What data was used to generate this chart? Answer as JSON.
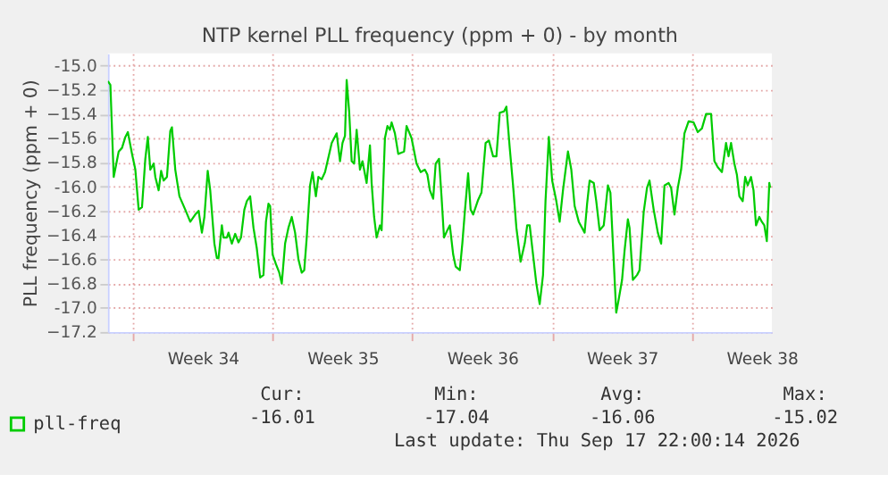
{
  "chart_data": {
    "type": "line",
    "title": "NTP kernel PLL frequency (ppm + 0) - by month",
    "ylabel": "PLL frequency (ppm + 0)",
    "xlim": [
      "2026-08-15T18:00",
      "2026-09-18T00:00"
    ],
    "xticks": [
      {
        "value": "2026-08-17T00:00",
        "label": null
      },
      {
        "value": "2026-08-20T12:00",
        "label": "Week 34"
      },
      {
        "value": "2026-08-24T00:00",
        "label": null
      },
      {
        "value": "2026-08-27T12:00",
        "label": "Week 35"
      },
      {
        "value": "2026-08-31T00:00",
        "label": null
      },
      {
        "value": "2026-09-03T12:00",
        "label": "Week 36"
      },
      {
        "value": "2026-09-07T00:00",
        "label": null
      },
      {
        "value": "2026-09-10T12:00",
        "label": "Week 37"
      },
      {
        "value": "2026-09-14T00:00",
        "label": null
      },
      {
        "value": "2026-09-17T12:00",
        "label": "Week 38"
      }
    ],
    "ylim": [
      -17.2,
      -14.9
    ],
    "yticks": [
      -17.2,
      {
        "value": -17,
        "label": "-17.0"
      },
      -16.8,
      -16.6,
      -16.4,
      -16.2,
      {
        "value": -16,
        "label": "-16.0"
      },
      -15.8,
      -15.6,
      -15.4,
      -15.2,
      {
        "value": -15,
        "label": "-15.0"
      }
    ],
    "grid": true,
    "legend": "bottom",
    "x": [
      "2026-08-15T18:00",
      "2026-08-15T21:00",
      "2026-08-16T01:00",
      "2026-08-16T07:00",
      "2026-08-16T11:00",
      "2026-08-16T15:00",
      "2026-08-16T18:00",
      "2026-08-16T23:00",
      "2026-08-17T03:00",
      "2026-08-17T07:00",
      "2026-08-17T11:00",
      "2026-08-17T15:00",
      "2026-08-17T18:00",
      "2026-08-17T21:00",
      "2026-08-18T01:00",
      "2026-08-18T03:00",
      "2026-08-18T07:00",
      "2026-08-18T10:00",
      "2026-08-18T13:00",
      "2026-08-18T17:00",
      "2026-08-18T21:00",
      "2026-08-18T23:00",
      "2026-08-19T03:00",
      "2026-08-19T08:00",
      "2026-08-19T15:00",
      "2026-08-19T21:00",
      "2026-08-20T03:00",
      "2026-08-20T07:00",
      "2026-08-20T11:00",
      "2026-08-20T14:00",
      "2026-08-20T18:00",
      "2026-08-20T21:00",
      "2026-08-21T02:00",
      "2026-08-21T05:00",
      "2026-08-21T07:00",
      "2026-08-21T11:00",
      "2026-08-21T13:00",
      "2026-08-21T17:00",
      "2026-08-21T19:00",
      "2026-08-21T23:00",
      "2026-08-22T03:00",
      "2026-08-22T07:00",
      "2026-08-22T10:00",
      "2026-08-22T14:00",
      "2026-08-22T17:00",
      "2026-08-22T21:00",
      "2026-08-23T01:00",
      "2026-08-23T05:00",
      "2026-08-23T09:00",
      "2026-08-23T13:00",
      "2026-08-23T16:00",
      "2026-08-23T19:00",
      "2026-08-23T21:00",
      "2026-08-24T00:00",
      "2026-08-24T04:00",
      "2026-08-24T08:00",
      "2026-08-24T11:00",
      "2026-08-24T15:00",
      "2026-08-24T19:00",
      "2026-08-24T23:00",
      "2026-08-25T03:00",
      "2026-08-25T07:00",
      "2026-08-25T11:00",
      "2026-08-25T14:00",
      "2026-08-25T17:00",
      "2026-08-25T21:00",
      "2026-08-26T00:00",
      "2026-08-26T04:00",
      "2026-08-26T07:00",
      "2026-08-26T11:00",
      "2026-08-26T15:00",
      "2026-08-26T20:00",
      "2026-08-26T23:00",
      "2026-08-27T02:00",
      "2026-08-27T05:00",
      "2026-08-27T09:00",
      "2026-08-27T12:00",
      "2026-08-27T15:00",
      "2026-08-27T17:00",
      "2026-08-27T20:00",
      "2026-08-27T23:00",
      "2026-08-28T02:00",
      "2026-08-28T05:00",
      "2026-08-28T09:00",
      "2026-08-28T12:00",
      "2026-08-28T17:00",
      "2026-08-28T21:00",
      "2026-08-28T23:00",
      "2026-08-29T02:00",
      "2026-08-29T05:00",
      "2026-08-29T09:00",
      "2026-08-29T11:00",
      "2026-08-29T15:00",
      "2026-08-29T18:00",
      "2026-08-29T21:00",
      "2026-08-29T23:00",
      "2026-08-30T03:00",
      "2026-08-30T07:00",
      "2026-08-30T14:00",
      "2026-08-30T17:00",
      "2026-08-30T23:00",
      "2026-08-31T05:00",
      "2026-08-31T10:00",
      "2026-08-31T15:00",
      "2026-08-31T18:00",
      "2026-08-31T21:00",
      "2026-09-01T01:00",
      "2026-09-01T04:00",
      "2026-09-01T08:00",
      "2026-09-01T11:00",
      "2026-09-01T14:00",
      "2026-09-01T18:00",
      "2026-09-01T21:00",
      "2026-09-02T01:00",
      "2026-09-02T04:00",
      "2026-09-02T09:00",
      "2026-09-02T12:00",
      "2026-09-02T15:00",
      "2026-09-02T19:00",
      "2026-09-02T22:00",
      "2026-09-03T01:00",
      "2026-09-03T07:00",
      "2026-09-03T11:00",
      "2026-09-03T16:00",
      "2026-09-03T20:00",
      "2026-09-04T01:00",
      "2026-09-04T05:00",
      "2026-09-04T09:00",
      "2026-09-04T14:00",
      "2026-09-04T17:00",
      "2026-09-04T21:00",
      "2026-09-05T01:00",
      "2026-09-05T05:00",
      "2026-09-05T10:00",
      "2026-09-05T15:00",
      "2026-09-05T18:00",
      "2026-09-05T21:00",
      "2026-09-06T01:00",
      "2026-09-06T05:00",
      "2026-09-06T09:00",
      "2026-09-06T13:00",
      "2026-09-06T16:00",
      "2026-09-06T20:00",
      "2026-09-07T00:00",
      "2026-09-07T05:00",
      "2026-09-07T09:00",
      "2026-09-07T13:00",
      "2026-09-07T19:00",
      "2026-09-07T23:00",
      "2026-09-08T03:00",
      "2026-09-08T08:00",
      "2026-09-08T15:00",
      "2026-09-08T18:00",
      "2026-09-08T21:00",
      "2026-09-09T02:00",
      "2026-09-09T05:00",
      "2026-09-09T09:00",
      "2026-09-09T14:00",
      "2026-09-09T19:00",
      "2026-09-09T22:00",
      "2026-09-10T01:00",
      "2026-09-10T05:00",
      "2026-09-10T08:00",
      "2026-09-10T12:00",
      "2026-09-10T15:00",
      "2026-09-10T19:00",
      "2026-09-10T21:00",
      "2026-09-11T01:00",
      "2026-09-11T06:00",
      "2026-09-11T09:00",
      "2026-09-11T14:00",
      "2026-09-11T18:00",
      "2026-09-11T21:00",
      "2026-09-12T02:00",
      "2026-09-12T07:00",
      "2026-09-12T11:00",
      "2026-09-12T15:00",
      "2026-09-12T20:00",
      "2026-09-12T23:00",
      "2026-09-13T03:00",
      "2026-09-13T07:00",
      "2026-09-13T11:00",
      "2026-09-13T15:00",
      "2026-09-13T20:00",
      "2026-09-14T02:00",
      "2026-09-14T07:00",
      "2026-09-14T12:00",
      "2026-09-14T17:00",
      "2026-09-14T23:00",
      "2026-09-15T03:00",
      "2026-09-15T07:00",
      "2026-09-15T12:00",
      "2026-09-15T17:00",
      "2026-09-15T20:00",
      "2026-09-15T23:00",
      "2026-09-16T03:00",
      "2026-09-16T06:00",
      "2026-09-16T09:00",
      "2026-09-16T13:00",
      "2026-09-16T16:00",
      "2026-09-16T19:00",
      "2026-09-16T23:00",
      "2026-09-17T02:00",
      "2026-09-17T05:00",
      "2026-09-17T09:00",
      "2026-09-17T12:00",
      "2026-09-17T15:00",
      "2026-09-17T18:00",
      "2026-09-17T21:00",
      "2026-09-17T22:00"
    ],
    "series": [
      {
        "name": "pll-freq",
        "color": "#00cc00",
        "values": [
          -15.13,
          -15.16,
          -15.92,
          -15.71,
          -15.68,
          -15.59,
          -15.55,
          -15.73,
          -15.86,
          -16.19,
          -16.17,
          -15.77,
          -15.59,
          -15.86,
          -15.81,
          -15.92,
          -16.03,
          -15.87,
          -15.95,
          -15.92,
          -15.54,
          -15.51,
          -15.86,
          -16.08,
          -16.19,
          -16.29,
          -16.23,
          -16.2,
          -16.38,
          -16.25,
          -15.87,
          -16.03,
          -16.47,
          -16.59,
          -16.59,
          -16.32,
          -16.42,
          -16.42,
          -16.38,
          -16.47,
          -16.39,
          -16.46,
          -16.42,
          -16.19,
          -16.12,
          -16.08,
          -16.34,
          -16.51,
          -16.75,
          -16.73,
          -16.29,
          -16.14,
          -16.16,
          -16.56,
          -16.64,
          -16.71,
          -16.8,
          -16.47,
          -16.34,
          -16.25,
          -16.38,
          -16.6,
          -16.71,
          -16.69,
          -16.42,
          -15.99,
          -15.88,
          -16.08,
          -15.92,
          -15.94,
          -15.88,
          -15.73,
          -15.64,
          -15.6,
          -15.56,
          -15.79,
          -15.64,
          -15.58,
          -15.12,
          -15.38,
          -15.79,
          -15.81,
          -15.53,
          -15.86,
          -15.79,
          -15.97,
          -15.66,
          -15.97,
          -16.25,
          -16.42,
          -16.32,
          -16.36,
          -15.6,
          -15.5,
          -15.53,
          -15.47,
          -15.56,
          -15.73,
          -15.71,
          -15.5,
          -15.6,
          -15.81,
          -15.88,
          -15.86,
          -15.9,
          -16.03,
          -16.1,
          -15.81,
          -15.77,
          -16.08,
          -16.42,
          -16.36,
          -16.32,
          -16.56,
          -16.66,
          -16.69,
          -16.47,
          -16.21,
          -15.89,
          -16.19,
          -16.23,
          -16.11,
          -16.05,
          -15.64,
          -15.62,
          -15.75,
          -15.75,
          -15.39,
          -15.38,
          -15.34,
          -15.68,
          -15.99,
          -16.34,
          -16.62,
          -16.47,
          -16.32,
          -16.32,
          -16.56,
          -16.8,
          -16.97,
          -16.73,
          -16.12,
          -15.59,
          -15.95,
          -16.12,
          -16.29,
          -16.03,
          -15.71,
          -15.86,
          -16.16,
          -16.29,
          -16.38,
          -16.14,
          -15.95,
          -15.97,
          -16.12,
          -16.36,
          -16.32,
          -15.99,
          -16.05,
          -16.47,
          -17.04,
          -16.93,
          -16.77,
          -16.53,
          -16.27,
          -16.34,
          -16.77,
          -16.73,
          -16.69,
          -16.21,
          -16.01,
          -15.95,
          -16.19,
          -16.38,
          -16.47,
          -15.99,
          -15.97,
          -16.01,
          -16.23,
          -16.01,
          -15.86,
          -15.56,
          -15.46,
          -15.47,
          -15.55,
          -15.52,
          -15.4,
          -15.4,
          -15.79,
          -15.84,
          -15.88,
          -15.64,
          -15.75,
          -15.64,
          -15.81,
          -15.9,
          -16.08,
          -16.12,
          -15.92,
          -15.99,
          -15.92,
          -16.03,
          -16.32,
          -16.25,
          -16.29,
          -16.32,
          -16.45,
          -15.97,
          -16.01
        ]
      }
    ],
    "annotations": [
      "Cur:",
      "Min:",
      "Avg:",
      "Max:",
      "-16.01",
      "-17.04",
      "-16.06",
      "-15.02",
      "Last update: Thu Sep 17 22:00:14 2026"
    ]
  }
}
